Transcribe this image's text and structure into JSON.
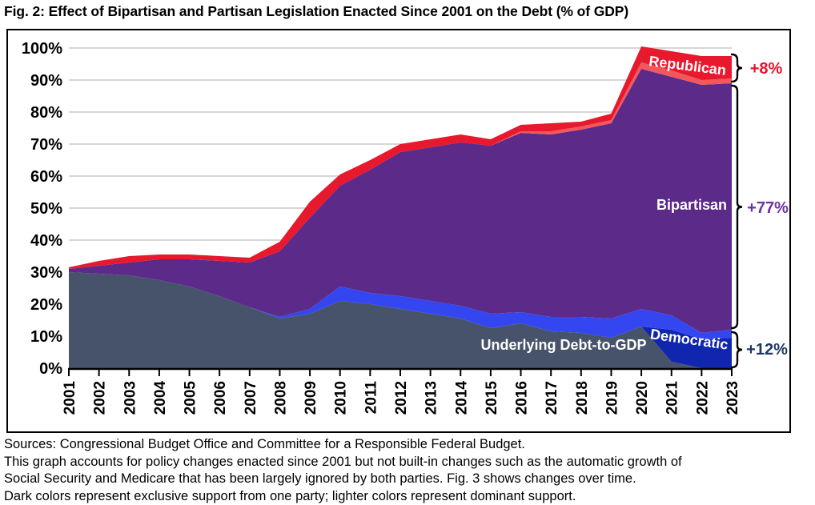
{
  "title": "Fig. 2: Effect of Bipartisan and Partisan Legislation Enacted Since 2001 on the Debt (% of GDP)",
  "footer": {
    "lines": [
      "Sources: Congressional Budget Office and Committee for a Responsible Federal Budget.",
      "This graph accounts for policy changes enacted since 2001 but not built-in changes such as the automatic growth of",
      "Social Security and Medicare that has been largely ignored by both parties. Fig. 3 shows changes over time.",
      "Dark colors represent exclusive support from one party; lighter colors represent dominant support."
    ]
  },
  "chart_data": {
    "type": "area",
    "stacked": true,
    "title": "Fig. 2: Effect of Bipartisan and Partisan Legislation Enacted Since 2001 on the Debt (% of GDP)",
    "xlabel": "",
    "ylabel": "",
    "ylim": [
      0,
      100
    ],
    "grid": "horizontal",
    "x": [
      2001,
      2002,
      2003,
      2004,
      2005,
      2006,
      2007,
      2008,
      2009,
      2010,
      2011,
      2012,
      2013,
      2014,
      2015,
      2016,
      2017,
      2018,
      2019,
      2020,
      2021,
      2022,
      2023
    ],
    "y_tick_labels": [
      "0%",
      "10%",
      "20%",
      "30%",
      "40%",
      "50%",
      "60%",
      "70%",
      "80%",
      "90%",
      "100%"
    ],
    "series": [
      {
        "id": "underlying",
        "name": "Underlying Debt-to-GDP",
        "label": "Underlying Debt-to-GDP",
        "color": "#46536B",
        "values": [
          30,
          29.5,
          29,
          27.5,
          25.5,
          22.5,
          19,
          15.5,
          17,
          21,
          20,
          18.5,
          17,
          15.5,
          12.5,
          14,
          11.5,
          11,
          9.5,
          13,
          2,
          0,
          0
        ]
      },
      {
        "id": "democratic-exclusive",
        "name": "Democratic (exclusive support)",
        "label": "",
        "color": "#1126AE",
        "values": [
          0,
          0,
          0,
          0,
          0,
          0,
          0,
          0,
          0,
          0,
          0,
          0,
          0,
          0,
          0,
          0,
          0,
          0,
          0,
          0,
          10,
          9,
          9.5
        ]
      },
      {
        "id": "democratic-dominant",
        "name": "Democratic (dominant support)",
        "label": "Democratic",
        "color": "#3346F0",
        "values": [
          0,
          0,
          0,
          0,
          0,
          0,
          0,
          0.5,
          1.5,
          4.5,
          3.5,
          4,
          4,
          4,
          4.5,
          3.5,
          4.5,
          5,
          6,
          5.5,
          4.5,
          2,
          2.5
        ]
      },
      {
        "id": "bipartisan",
        "name": "Bipartisan",
        "label": "Bipartisan",
        "color": "#5C2B8A",
        "values": [
          1,
          2.5,
          4,
          6.5,
          8.5,
          11,
          14,
          20.5,
          28.5,
          31.5,
          38.5,
          45,
          48,
          51,
          52.5,
          56,
          57,
          58.5,
          61,
          75,
          74.5,
          77.5,
          77
        ]
      },
      {
        "id": "republican-dominant",
        "name": "Republican (dominant support)",
        "label": "",
        "color": "#F2575C",
        "values": [
          0,
          0,
          0,
          0,
          0,
          0,
          0,
          0,
          0,
          0,
          0,
          0,
          0,
          0,
          0,
          0.5,
          1,
          1,
          1,
          2,
          2,
          1.5,
          1.5
        ]
      },
      {
        "id": "republican-exclusive",
        "name": "Republican (exclusive support)",
        "label": "Republican",
        "color": "#E8182D",
        "values": [
          0.5,
          1.5,
          2,
          1.5,
          1.5,
          1.5,
          1.5,
          3,
          5,
          3.5,
          3,
          2.5,
          2.5,
          2.5,
          2,
          2,
          2.5,
          1.5,
          2,
          5,
          6,
          7.5,
          7
        ]
      }
    ],
    "annotations": [
      {
        "id": "republican",
        "text": "+8%",
        "color": "#E8112D"
      },
      {
        "id": "bipartisan",
        "text": "+77%",
        "color": "#7030A0"
      },
      {
        "id": "democratic",
        "text": "+12%",
        "color": "#1F3864"
      }
    ],
    "colors": {
      "grid": "#C8C8C8",
      "axis": "#000000",
      "area_label_text": "#FFFFFF"
    },
    "legend": "in-chart area labels"
  }
}
